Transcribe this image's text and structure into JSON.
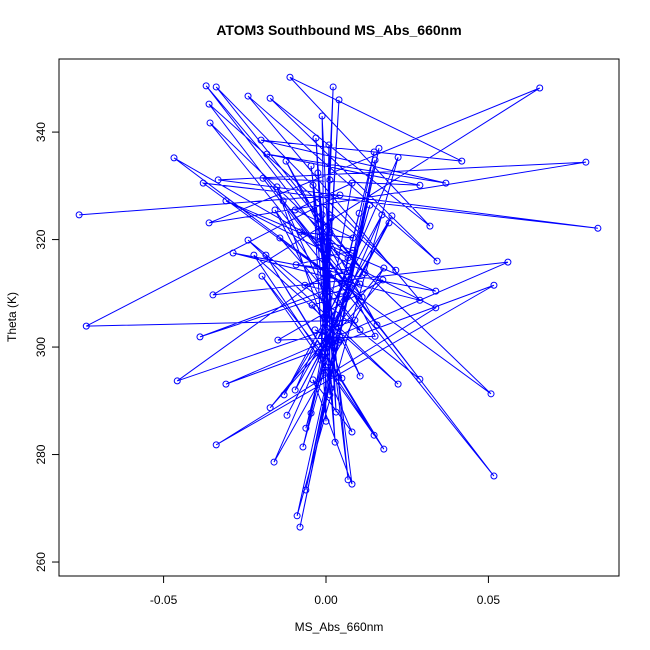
{
  "chart_data": {
    "type": "line",
    "markers": true,
    "color": "#0000ff",
    "title": "ATOM3 Southbound MS_Abs_660nm",
    "x_label": "MS_Abs_660nm",
    "y_label": "Theta (K)",
    "xlim": [
      -0.0822,
      0.0902
    ],
    "ylim": [
      257.4,
      353.6
    ],
    "xticks": [
      -0.05,
      {
        "value": 0,
        "label": "0.00"
      },
      0.05
    ],
    "yticks": [
      260,
      280,
      300,
      320,
      340
    ],
    "x": [
      -0.076,
      0.0043,
      -0.0738,
      0.0089,
      -0.0458,
      0.0068,
      -0.0468,
      0.0049,
      -0.0388,
      0.0105,
      -0.0369,
      0.012,
      -0.0338,
      0.0215,
      -0.036,
      0.0517,
      -0.0357,
      0.0508,
      -0.0378,
      0.0837,
      -0.0332,
      0.08,
      -0.036,
      0.0658,
      -0.0348,
      0.056,
      -0.0308,
      0.0517,
      -0.0338,
      0.0338,
      -0.0308,
      0.0338,
      -0.0286,
      0.0289,
      -0.024,
      0.0342,
      -0.0172,
      0.032,
      -0.0111,
      0.0418,
      -0.02,
      0.0369,
      -0.0182,
      0.0289,
      -0.0194,
      0.0289,
      -0.024,
      0.0222,
      -0.0222,
      0.0178,
      -0.0185,
      0.0148,
      -0.0197,
      0.0049,
      -0.0151,
      0.0105,
      -0.0157,
      0.0105,
      -0.0142,
      0.0111,
      -0.0132,
      0.0157,
      -0.0123,
      0.0151,
      -0.0148,
      0.0175,
      -0.0172,
      0.0178,
      -0.016,
      0.0172,
      -0.0129,
      0.0203,
      -0.012,
      0.0194,
      -0.0095,
      0.0222,
      -0.0089,
      0.0151,
      -0.008,
      0.0163,
      -0.0062,
      0.0148,
      -0.0071,
      0.0135,
      -0.0062,
      0.0102,
      -0.0046,
      0.008,
      -0.0095,
      0.0083,
      -0.008,
      0.0083,
      -0.0092,
      0.0071,
      -0.0065,
      0.0062,
      -0.0043,
      0.0043,
      -0.0034,
      0.004,
      -0.0025,
      0.008,
      -0.004,
      0.008,
      -0.0046,
      0.0068,
      -0.0025,
      0.0028,
      -0.004,
      0,
      -0.0012,
      0.0031,
      -0.0031,
      0.0012,
      0.0009,
      -0.0003,
      0.0012,
      -0.0015,
      0.0022,
      -0.0003,
      0.004,
      0.0003,
      -0.0012,
      -0.0009,
      0.0015,
      -0.0022,
      0.0012
    ],
    "values": [
      324.6,
      328.3,
      303.9,
      305.0,
      293.7,
      316.6,
      335.2,
      311.7,
      301.9,
      311.7,
      348.6,
      313.8,
      348.4,
      314.3,
      345.2,
      276.0,
      341.7,
      291.3,
      330.5,
      322.1,
      331.1,
      334.4,
      323.1,
      348.2,
      309.7,
      315.8,
      293.1,
      311.5,
      281.8,
      307.3,
      327.2,
      310.4,
      317.5,
      308.7,
      346.7,
      316.0,
      346.3,
      322.5,
      350.2,
      334.6,
      338.5,
      330.5,
      335.9,
      330.1,
      331.4,
      294.0,
      319.9,
      293.1,
      317.1,
      281.0,
      317.1,
      283.6,
      313.2,
      294.2,
      329.8,
      294.6,
      325.5,
      303.2,
      320.3,
      309.3,
      327.2,
      304.1,
      334.6,
      302.0,
      301.3,
      312.5,
      288.7,
      314.7,
      278.6,
      324.6,
      291.1,
      324.4,
      287.3,
      323.1,
      292.0,
      335.3,
      268.6,
      334.8,
      266.5,
      337.0,
      273.4,
      336.3,
      281.4,
      326.4,
      284.9,
      324.9,
      287.7,
      330.5,
      325.5,
      320.3,
      321.4,
      318.0,
      315.3,
      314.3,
      311.5,
      309.7,
      307.8,
      301.3,
      303.2,
      300.9,
      298.9,
      284.2,
      293.9,
      274.5,
      333.7,
      275.3,
      332.4,
      282.3,
      330.1,
      286.2,
      343.0,
      287.9,
      338.9,
      291.1,
      337.6,
      295.3,
      331.1,
      297.6,
      348.4,
      303.2,
      346.0,
      306.5,
      324.6,
      309.5,
      324.0,
      319.5,
      321.4
    ]
  }
}
